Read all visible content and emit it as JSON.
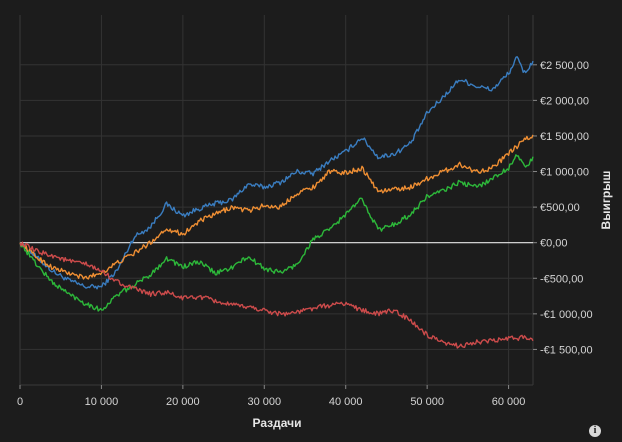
{
  "chart_data": {
    "type": "line",
    "title": "",
    "xlabel": "Раздачи",
    "ylabel": "Выигрыш",
    "xlim": [
      0,
      63000
    ],
    "ylim": [
      -2000,
      3200
    ],
    "x_ticks": [
      0,
      10000,
      20000,
      30000,
      40000,
      50000,
      60000
    ],
    "x_tick_labels": [
      "0",
      "10 000",
      "20 000",
      "30 000",
      "40 000",
      "50 000",
      "60 000"
    ],
    "y_ticks": [
      -1500,
      -1000,
      -500,
      0,
      500,
      1000,
      1500,
      2000,
      2500
    ],
    "y_tick_labels": [
      "-€1 500,00",
      "-€1 000,00",
      "-€500,00",
      "€0,00",
      "€500,00",
      "€1 000,00",
      "€1 500,00",
      "€2 000,00",
      "€2 500,00"
    ],
    "zero_line": true,
    "grid": true,
    "series": [
      {
        "color": "#3a7dc0",
        "x": [
          0,
          2000,
          4000,
          6000,
          8000,
          10000,
          12000,
          14000,
          16000,
          18000,
          20000,
          22000,
          24000,
          26000,
          28000,
          30000,
          32000,
          34000,
          36000,
          38000,
          40000,
          42000,
          44000,
          46000,
          48000,
          50000,
          52000,
          54000,
          56000,
          58000,
          60000,
          61000,
          62000,
          63000
        ],
        "y": [
          0,
          -200,
          -400,
          -530,
          -620,
          -620,
          -380,
          80,
          220,
          540,
          380,
          480,
          550,
          600,
          820,
          780,
          850,
          1000,
          970,
          1150,
          1280,
          1480,
          1200,
          1250,
          1400,
          1820,
          2050,
          2300,
          2200,
          2150,
          2380,
          2600,
          2380,
          2550
        ]
      },
      {
        "color": "#ee8e33",
        "x": [
          0,
          2000,
          4000,
          6000,
          8000,
          10000,
          12000,
          14000,
          16000,
          18000,
          20000,
          22000,
          24000,
          26000,
          28000,
          30000,
          32000,
          34000,
          36000,
          38000,
          40000,
          42000,
          44000,
          46000,
          48000,
          50000,
          52000,
          54000,
          56000,
          58000,
          60000,
          61000,
          62000,
          63000
        ],
        "y": [
          0,
          -200,
          -350,
          -430,
          -500,
          -420,
          -280,
          -150,
          0,
          200,
          120,
          300,
          400,
          500,
          450,
          520,
          500,
          700,
          780,
          1000,
          980,
          1050,
          720,
          750,
          780,
          900,
          1000,
          1100,
          1000,
          1050,
          1250,
          1350,
          1450,
          1500
        ]
      },
      {
        "color": "#2db83a",
        "x": [
          0,
          2000,
          4000,
          6000,
          8000,
          10000,
          12000,
          14000,
          16000,
          18000,
          20000,
          22000,
          24000,
          26000,
          28000,
          30000,
          32000,
          34000,
          36000,
          38000,
          40000,
          42000,
          44000,
          46000,
          48000,
          50000,
          52000,
          54000,
          56000,
          58000,
          60000,
          61000,
          62000,
          63000
        ],
        "y": [
          0,
          -300,
          -560,
          -720,
          -850,
          -950,
          -730,
          -600,
          -450,
          -220,
          -340,
          -270,
          -430,
          -350,
          -200,
          -360,
          -420,
          -310,
          50,
          180,
          400,
          620,
          180,
          260,
          400,
          650,
          730,
          850,
          780,
          900,
          1050,
          1250,
          1050,
          1180
        ]
      },
      {
        "color": "#cc4b4b",
        "x": [
          0,
          2000,
          4000,
          6000,
          8000,
          10000,
          12000,
          14000,
          16000,
          18000,
          20000,
          22000,
          24000,
          26000,
          28000,
          30000,
          32000,
          34000,
          36000,
          38000,
          40000,
          42000,
          44000,
          46000,
          48000,
          50000,
          52000,
          54000,
          56000,
          58000,
          60000,
          62000,
          63000
        ],
        "y": [
          0,
          -120,
          -180,
          -260,
          -300,
          -400,
          -550,
          -650,
          -720,
          -700,
          -780,
          -760,
          -820,
          -880,
          -900,
          -950,
          -1000,
          -980,
          -920,
          -880,
          -850,
          -950,
          -1000,
          -950,
          -1100,
          -1300,
          -1420,
          -1450,
          -1400,
          -1380,
          -1350,
          -1330,
          -1350
        ]
      }
    ]
  },
  "footer": {
    "info_icon": "info-icon",
    "info_glyph": "i"
  }
}
